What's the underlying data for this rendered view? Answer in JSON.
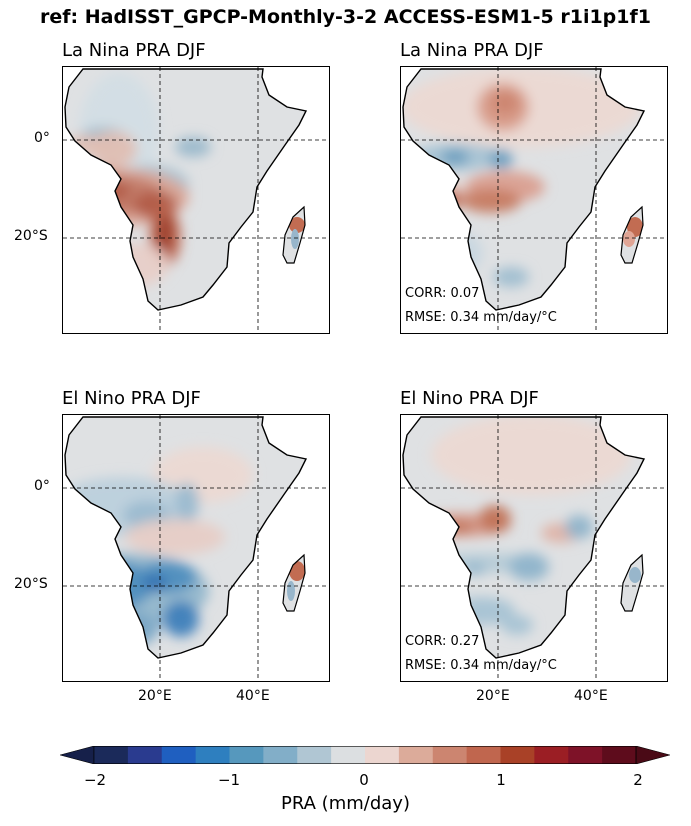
{
  "figure": {
    "suptitle": "ref: HadISST_GPCP-Monthly-3-2 ACCESS-ESM1-5 r1i1p1f1"
  },
  "panels": [
    {
      "title": "La Nina PRA DJF",
      "corr": "",
      "rmse": ""
    },
    {
      "title": "La Nina PRA DJF",
      "corr": "CORR: 0.07",
      "rmse": "RMSE: 0.34 mm/day/$^\\circ$C"
    },
    {
      "title": "El Nino PRA DJF",
      "corr": "",
      "rmse": ""
    },
    {
      "title": "El Nino PRA DJF",
      "corr": "CORR: 0.27",
      "rmse": "RMSE: 0.34 mm/day/$^\\circ$C"
    }
  ],
  "panel_stats_display": {
    "p2_corr": "CORR: 0.07",
    "p2_rmse": "RMSE: 0.34 mm/day/°C",
    "p4_corr": "CORR: 0.27",
    "p4_rmse": "RMSE: 0.34 mm/day/°C"
  },
  "axes": {
    "lat_labels": [
      "0°",
      "20°S"
    ],
    "lon_labels": [
      "20°E",
      "40°E"
    ]
  },
  "colorbar": {
    "label": "PRA (mm/day)",
    "ticks": [
      "−2",
      "−1",
      "0",
      "1",
      "2"
    ],
    "range": [
      -2,
      2
    ],
    "extend": "both",
    "colors": [
      "#1b2a5a",
      "#2a3b8f",
      "#1f5fc0",
      "#2e7fbf",
      "#5698bd",
      "#82aec8",
      "#b0c6d3",
      "#dcdfe1",
      "#ecd6d0",
      "#dcab9a",
      "#cc8570",
      "#c0664e",
      "#a94127",
      "#9b1e24",
      "#7e1228",
      "#5e0c1c"
    ],
    "under_color": "#16204a",
    "over_color": "#4a0a16"
  },
  "chart_data": {
    "type": "heatmap",
    "title": "ref: HadISST_GPCP-Monthly-3-2 ACCESS-ESM1-5 r1i1p1f1",
    "xlabel": "",
    "ylabel": "",
    "xticks": [
      "20°E",
      "40°E"
    ],
    "yticks": [
      "0°",
      "20°S"
    ],
    "colorbar_label": "PRA (mm/day)",
    "vrange": [
      -2,
      2
    ],
    "panels": [
      {
        "title": "La Nina PRA DJF",
        "corr": null,
        "rmse": null
      },
      {
        "title": "La Nina PRA DJF",
        "corr": 0.07,
        "rmse": 0.34
      },
      {
        "title": "El Nino PRA DJF",
        "corr": null,
        "rmse": null
      },
      {
        "title": "El Nino PRA DJF",
        "corr": 0.27,
        "rmse": 0.34
      }
    ]
  }
}
